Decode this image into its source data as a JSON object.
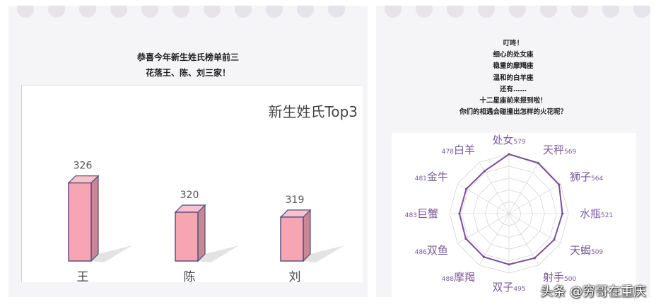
{
  "left": {
    "caption_lines": [
      "恭喜今年新生姓氏榜单前三",
      "花落王、陈、刘三家！"
    ]
  },
  "right": {
    "caption_lines": [
      "叮咚！",
      "细心的处女座",
      "稳重的摩羯座",
      "温和的白羊座",
      "还有……",
      "十二星座前来报到啦！",
      "你们的相遇会碰撞出怎样的火花呢？"
    ]
  },
  "watermark": "头条 @穷哥在重庆",
  "colors": {
    "bar_front": "#f7a4b3",
    "bar_side": "#c98792",
    "bar_outline": "#4b4e7e",
    "radar_line": "#7a4f9c",
    "label": "#7a5a9a"
  },
  "chart_data": [
    {
      "type": "bar",
      "title": "新生姓氏Top3",
      "categories": [
        "王",
        "陈",
        "刘"
      ],
      "values": [
        326,
        320,
        319
      ],
      "ylim": [
        310,
        330
      ]
    },
    {
      "type": "radar",
      "title": "",
      "categories": [
        "处女",
        "天秤",
        "狮子",
        "水瓶",
        "天蝎",
        "射手",
        "双子",
        "摩羯",
        "双鱼",
        "巨蟹",
        "金牛",
        "白羊"
      ],
      "values": [
        579,
        569,
        564,
        521,
        509,
        500,
        495,
        488,
        486,
        483,
        481,
        478
      ],
      "rmax": 579
    }
  ]
}
